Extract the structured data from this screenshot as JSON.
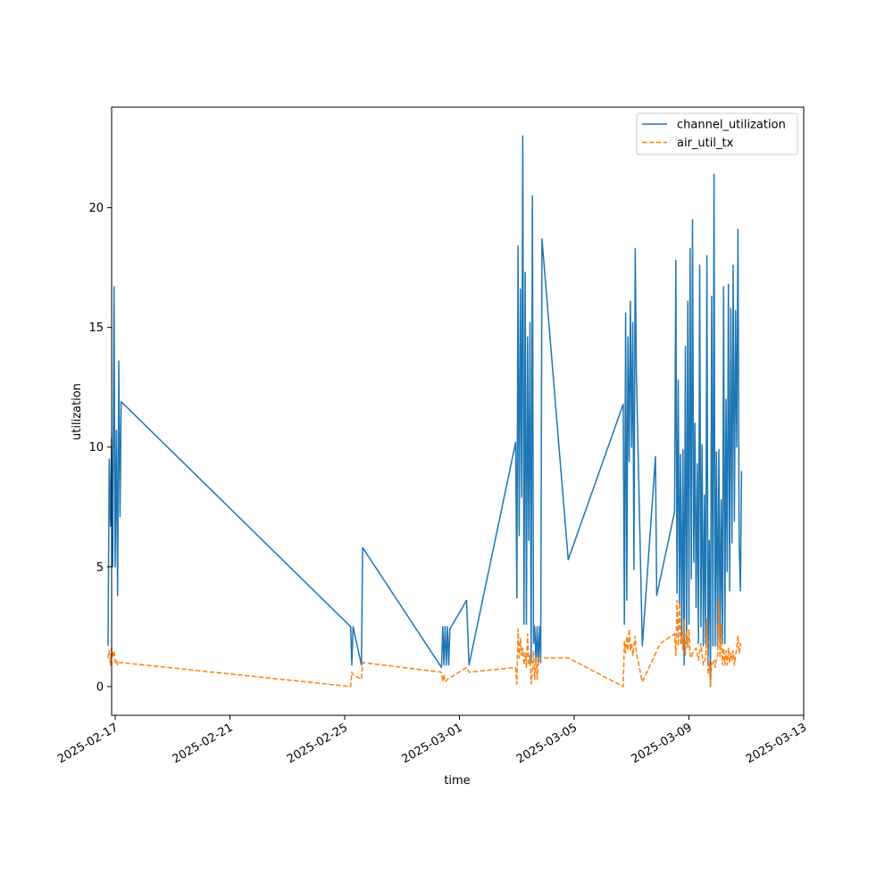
{
  "chart_data": {
    "type": "line",
    "title": "",
    "xlabel": "time",
    "ylabel": "utilization",
    "x_type": "datetime",
    "xlim": [
      "2025-02-16T21:00",
      "2025-03-13T00:00"
    ],
    "ylim": [
      -1.2,
      24.2
    ],
    "x_ticks": [
      "2025-02-17",
      "2025-02-21",
      "2025-02-25",
      "2025-03-01",
      "2025-03-05",
      "2025-03-09",
      "2025-03-13"
    ],
    "y_ticks": [
      0,
      5,
      10,
      15,
      20
    ],
    "grid": false,
    "legend": {
      "placement": "top-right",
      "entries": [
        "channel_utilization",
        "air_util_tx"
      ]
    },
    "series": [
      {
        "name": "channel_utilization",
        "color": "#1f77b4",
        "style": "solid",
        "points": [
          [
            "2025-02-16T18:00",
            1.7
          ],
          [
            "2025-02-16T19:00",
            9.5
          ],
          [
            "2025-02-16T20:00",
            6.7
          ],
          [
            "2025-02-16T21:00",
            10.4
          ],
          [
            "2025-02-16T22:00",
            5.0
          ],
          [
            "2025-02-16T23:00",
            16.7
          ],
          [
            "2025-02-17T00:00",
            5.0
          ],
          [
            "2025-02-17T01:00",
            10.7
          ],
          [
            "2025-02-17T02:00",
            3.8
          ],
          [
            "2025-02-17T03:00",
            13.6
          ],
          [
            "2025-02-17T04:00",
            7.1
          ],
          [
            "2025-02-17T05:00",
            11.9
          ],
          [
            "2025-02-25T05:00",
            2.5
          ],
          [
            "2025-02-25T06:00",
            0.9
          ],
          [
            "2025-02-25T07:00",
            2.5
          ],
          [
            "2025-02-25T14:00",
            0.9
          ],
          [
            "2025-02-25T15:00",
            5.8
          ],
          [
            "2025-02-28T09:00",
            0.8
          ],
          [
            "2025-02-28T10:00",
            2.5
          ],
          [
            "2025-02-28T11:00",
            0.9
          ],
          [
            "2025-02-28T12:00",
            2.5
          ],
          [
            "2025-02-28T13:00",
            0.9
          ],
          [
            "2025-02-28T14:00",
            2.5
          ],
          [
            "2025-02-28T15:00",
            0.9
          ],
          [
            "2025-02-28T16:00",
            2.4
          ],
          [
            "2025-03-01T06:00",
            3.6
          ],
          [
            "2025-03-01T08:00",
            0.9
          ],
          [
            "2025-03-02T23:00",
            10.2
          ],
          [
            "2025-03-03T00:00",
            3.7
          ],
          [
            "2025-03-03T01:00",
            18.4
          ],
          [
            "2025-03-03T02:00",
            6.3
          ],
          [
            "2025-03-03T03:00",
            16.6
          ],
          [
            "2025-03-03T04:00",
            7.9
          ],
          [
            "2025-03-03T05:00",
            23.0
          ],
          [
            "2025-03-03T06:00",
            2.6
          ],
          [
            "2025-03-03T07:00",
            17.3
          ],
          [
            "2025-03-03T08:00",
            2.6
          ],
          [
            "2025-03-03T09:00",
            14.6
          ],
          [
            "2025-03-03T10:00",
            6.1
          ],
          [
            "2025-03-03T11:00",
            15.2
          ],
          [
            "2025-03-03T12:00",
            1.0
          ],
          [
            "2025-03-03T13:00",
            20.5
          ],
          [
            "2025-03-03T14:00",
            1.8
          ],
          [
            "2025-03-03T15:00",
            2.5
          ],
          [
            "2025-03-03T16:00",
            1.0
          ],
          [
            "2025-03-03T17:00",
            2.5
          ],
          [
            "2025-03-03T18:00",
            0.9
          ],
          [
            "2025-03-03T19:00",
            2.5
          ],
          [
            "2025-03-03T20:00",
            1.0
          ],
          [
            "2025-03-03T21:00",
            18.7
          ],
          [
            "2025-03-04T19:00",
            5.3
          ],
          [
            "2025-03-06T17:00",
            11.8
          ],
          [
            "2025-03-06T18:00",
            2.6
          ],
          [
            "2025-03-06T19:00",
            15.6
          ],
          [
            "2025-03-06T20:00",
            3.6
          ],
          [
            "2025-03-06T21:00",
            14.6
          ],
          [
            "2025-03-06T22:00",
            9.4
          ],
          [
            "2025-03-06T23:00",
            16.1
          ],
          [
            "2025-03-07T00:00",
            10.0
          ],
          [
            "2025-03-07T01:00",
            15.2
          ],
          [
            "2025-03-07T02:00",
            4.9
          ],
          [
            "2025-03-07T03:00",
            18.3
          ],
          [
            "2025-03-07T04:00",
            13.2
          ],
          [
            "2025-03-07T09:00",
            1.7
          ],
          [
            "2025-03-07T20:00",
            9.6
          ],
          [
            "2025-03-07T21:00",
            3.8
          ],
          [
            "2025-03-08T12:00",
            7.3
          ],
          [
            "2025-03-08T13:00",
            17.8
          ],
          [
            "2025-03-08T14:00",
            3.9
          ],
          [
            "2025-03-08T15:00",
            12.8
          ],
          [
            "2025-03-08T16:00",
            3.4
          ],
          [
            "2025-03-08T17:00",
            9.7
          ],
          [
            "2025-03-08T18:00",
            1.8
          ],
          [
            "2025-03-08T19:00",
            9.9
          ],
          [
            "2025-03-08T20:00",
            0.9
          ],
          [
            "2025-03-08T21:00",
            14.2
          ],
          [
            "2025-03-08T22:00",
            1.8
          ],
          [
            "2025-03-08T23:00",
            16.1
          ],
          [
            "2025-03-09T00:00",
            2.6
          ],
          [
            "2025-03-09T01:00",
            18.3
          ],
          [
            "2025-03-09T02:00",
            4.5
          ],
          [
            "2025-03-09T03:00",
            19.5
          ],
          [
            "2025-03-09T04:00",
            5.2
          ],
          [
            "2025-03-09T05:00",
            11.0
          ],
          [
            "2025-03-09T06:00",
            3.3
          ],
          [
            "2025-03-09T07:00",
            9.3
          ],
          [
            "2025-03-09T08:00",
            1.8
          ],
          [
            "2025-03-09T09:00",
            17.6
          ],
          [
            "2025-03-09T10:00",
            2.5
          ],
          [
            "2025-03-09T11:00",
            10.1
          ],
          [
            "2025-03-09T12:00",
            1.7
          ],
          [
            "2025-03-09T13:00",
            8.0
          ],
          [
            "2025-03-09T14:00",
            1.8
          ],
          [
            "2025-03-09T15:00",
            18.0
          ],
          [
            "2025-03-09T16:00",
            1.0
          ],
          [
            "2025-03-09T17:00",
            6.1
          ],
          [
            "2025-03-09T18:00",
            0.0
          ],
          [
            "2025-03-09T19:00",
            16.3
          ],
          [
            "2025-03-09T20:00",
            1.7
          ],
          [
            "2025-03-09T21:00",
            21.4
          ],
          [
            "2025-03-09T22:00",
            1.7
          ],
          [
            "2025-03-09T23:00",
            9.8
          ],
          [
            "2025-03-10T00:00",
            1.7
          ],
          [
            "2025-03-10T01:00",
            9.9
          ],
          [
            "2025-03-10T02:00",
            1.8
          ],
          [
            "2025-03-10T03:00",
            7.8
          ],
          [
            "2025-03-10T04:00",
            1.8
          ],
          [
            "2025-03-10T05:00",
            16.7
          ],
          [
            "2025-03-10T06:00",
            1.8
          ],
          [
            "2025-03-10T07:00",
            12.0
          ],
          [
            "2025-03-10T08:00",
            4.8
          ],
          [
            "2025-03-10T09:00",
            16.8
          ],
          [
            "2025-03-10T10:00",
            4.0
          ],
          [
            "2025-03-10T11:00",
            15.8
          ],
          [
            "2025-03-10T12:00",
            6.0
          ],
          [
            "2025-03-10T13:00",
            17.6
          ],
          [
            "2025-03-10T14:00",
            6.9
          ],
          [
            "2025-03-10T15:00",
            15.7
          ],
          [
            "2025-03-10T16:00",
            10.0
          ],
          [
            "2025-03-10T17:00",
            19.1
          ],
          [
            "2025-03-10T18:00",
            6.0
          ],
          [
            "2025-03-10T19:00",
            4.0
          ],
          [
            "2025-03-10T20:00",
            9.0
          ]
        ]
      },
      {
        "name": "air_util_tx",
        "color": "#ff7f0e",
        "style": "dashed",
        "points": [
          [
            "2025-02-16T18:00",
            1.2
          ],
          [
            "2025-02-16T19:00",
            1.5
          ],
          [
            "2025-02-16T20:00",
            0.9
          ],
          [
            "2025-02-16T21:00",
            1.6
          ],
          [
            "2025-02-16T22:00",
            1.2
          ],
          [
            "2025-02-16T23:00",
            1.5
          ],
          [
            "2025-02-17T00:00",
            1.0
          ],
          [
            "2025-02-17T01:00",
            1.1
          ],
          [
            "2025-02-17T02:00",
            0.9
          ],
          [
            "2025-02-17T03:00",
            1.0
          ],
          [
            "2025-02-17T05:00",
            1.0
          ],
          [
            "2025-02-25T05:00",
            0.0
          ],
          [
            "2025-02-25T06:00",
            0.6
          ],
          [
            "2025-02-25T07:00",
            0.5
          ],
          [
            "2025-02-25T14:00",
            0.3
          ],
          [
            "2025-02-25T15:00",
            1.0
          ],
          [
            "2025-02-28T09:00",
            0.6
          ],
          [
            "2025-02-28T10:00",
            0.2
          ],
          [
            "2025-02-28T11:00",
            0.5
          ],
          [
            "2025-02-28T12:00",
            0.2
          ],
          [
            "2025-02-28T14:00",
            0.3
          ],
          [
            "2025-03-01T06:00",
            0.8
          ],
          [
            "2025-03-01T08:00",
            0.6
          ],
          [
            "2025-03-02T23:00",
            0.8
          ],
          [
            "2025-03-03T00:00",
            0.1
          ],
          [
            "2025-03-03T01:00",
            2.4
          ],
          [
            "2025-03-03T02:00",
            1.2
          ],
          [
            "2025-03-03T03:00",
            2.0
          ],
          [
            "2025-03-03T04:00",
            1.3
          ],
          [
            "2025-03-03T05:00",
            1.6
          ],
          [
            "2025-03-03T06:00",
            0.9
          ],
          [
            "2025-03-03T07:00",
            1.4
          ],
          [
            "2025-03-03T08:00",
            0.8
          ],
          [
            "2025-03-03T09:00",
            2.2
          ],
          [
            "2025-03-03T10:00",
            0.9
          ],
          [
            "2025-03-03T11:00",
            1.3
          ],
          [
            "2025-03-03T12:00",
            0.1
          ],
          [
            "2025-03-03T13:00",
            0.6
          ],
          [
            "2025-03-03T14:00",
            1.5
          ],
          [
            "2025-03-03T15:00",
            0.3
          ],
          [
            "2025-03-03T16:00",
            1.2
          ],
          [
            "2025-03-03T17:00",
            0.3
          ],
          [
            "2025-03-03T18:00",
            1.2
          ],
          [
            "2025-03-04T19:00",
            1.2
          ],
          [
            "2025-03-06T17:00",
            0.0
          ],
          [
            "2025-03-06T18:00",
            1.9
          ],
          [
            "2025-03-06T19:00",
            1.4
          ],
          [
            "2025-03-06T20:00",
            2.1
          ],
          [
            "2025-03-06T21:00",
            1.5
          ],
          [
            "2025-03-06T22:00",
            2.4
          ],
          [
            "2025-03-06T23:00",
            1.5
          ],
          [
            "2025-03-07T00:00",
            1.8
          ],
          [
            "2025-03-07T01:00",
            1.3
          ],
          [
            "2025-03-07T02:00",
            1.7
          ],
          [
            "2025-03-07T03:00",
            2.1
          ],
          [
            "2025-03-07T04:00",
            1.4
          ],
          [
            "2025-03-07T09:00",
            0.2
          ],
          [
            "2025-03-08T00:00",
            1.8
          ],
          [
            "2025-03-08T12:00",
            2.2
          ],
          [
            "2025-03-08T13:00",
            1.3
          ],
          [
            "2025-03-08T14:00",
            3.6
          ],
          [
            "2025-03-08T15:00",
            1.7
          ],
          [
            "2025-03-08T16:00",
            3.5
          ],
          [
            "2025-03-08T17:00",
            1.8
          ],
          [
            "2025-03-08T18:00",
            2.1
          ],
          [
            "2025-03-08T19:00",
            1.5
          ],
          [
            "2025-03-08T20:00",
            2.8
          ],
          [
            "2025-03-08T21:00",
            1.3
          ],
          [
            "2025-03-08T22:00",
            2.3
          ],
          [
            "2025-03-08T23:00",
            1.6
          ],
          [
            "2025-03-09T00:00",
            2.4
          ],
          [
            "2025-03-09T01:00",
            1.3
          ],
          [
            "2025-03-09T02:00",
            1.2
          ],
          [
            "2025-03-09T03:00",
            1.4
          ],
          [
            "2025-03-09T06:00",
            1.6
          ],
          [
            "2025-03-09T08:00",
            1.1
          ],
          [
            "2025-03-09T10:00",
            1.8
          ],
          [
            "2025-03-09T12:00",
            0.9
          ],
          [
            "2025-03-09T14:00",
            1.2
          ],
          [
            "2025-03-09T15:00",
            2.8
          ],
          [
            "2025-03-09T16:00",
            0.5
          ],
          [
            "2025-03-09T17:00",
            1.0
          ],
          [
            "2025-03-09T18:00",
            0.0
          ],
          [
            "2025-03-09T19:00",
            1.0
          ],
          [
            "2025-03-09T20:00",
            0.9
          ],
          [
            "2025-03-09T21:00",
            1.1
          ],
          [
            "2025-03-09T22:00",
            0.8
          ],
          [
            "2025-03-09T23:00",
            1.2
          ],
          [
            "2025-03-10T00:00",
            1.3
          ],
          [
            "2025-03-10T01:00",
            3.7
          ],
          [
            "2025-03-10T02:00",
            1.2
          ],
          [
            "2025-03-10T03:00",
            2.6
          ],
          [
            "2025-03-10T04:00",
            0.9
          ],
          [
            "2025-03-10T05:00",
            1.6
          ],
          [
            "2025-03-10T06:00",
            0.9
          ],
          [
            "2025-03-10T07:00",
            1.5
          ],
          [
            "2025-03-10T08:00",
            0.9
          ],
          [
            "2025-03-10T09:00",
            1.6
          ],
          [
            "2025-03-10T10:00",
            1.0
          ],
          [
            "2025-03-10T11:00",
            1.4
          ],
          [
            "2025-03-10T12:00",
            1.1
          ],
          [
            "2025-03-10T13:00",
            1.5
          ],
          [
            "2025-03-10T14:00",
            0.9
          ],
          [
            "2025-03-10T15:00",
            1.3
          ],
          [
            "2025-03-10T16:00",
            1.6
          ],
          [
            "2025-03-10T17:00",
            2.1
          ],
          [
            "2025-03-10T18:00",
            1.4
          ],
          [
            "2025-03-10T19:00",
            1.8
          ],
          [
            "2025-03-10T20:00",
            1.6
          ]
        ]
      }
    ]
  }
}
